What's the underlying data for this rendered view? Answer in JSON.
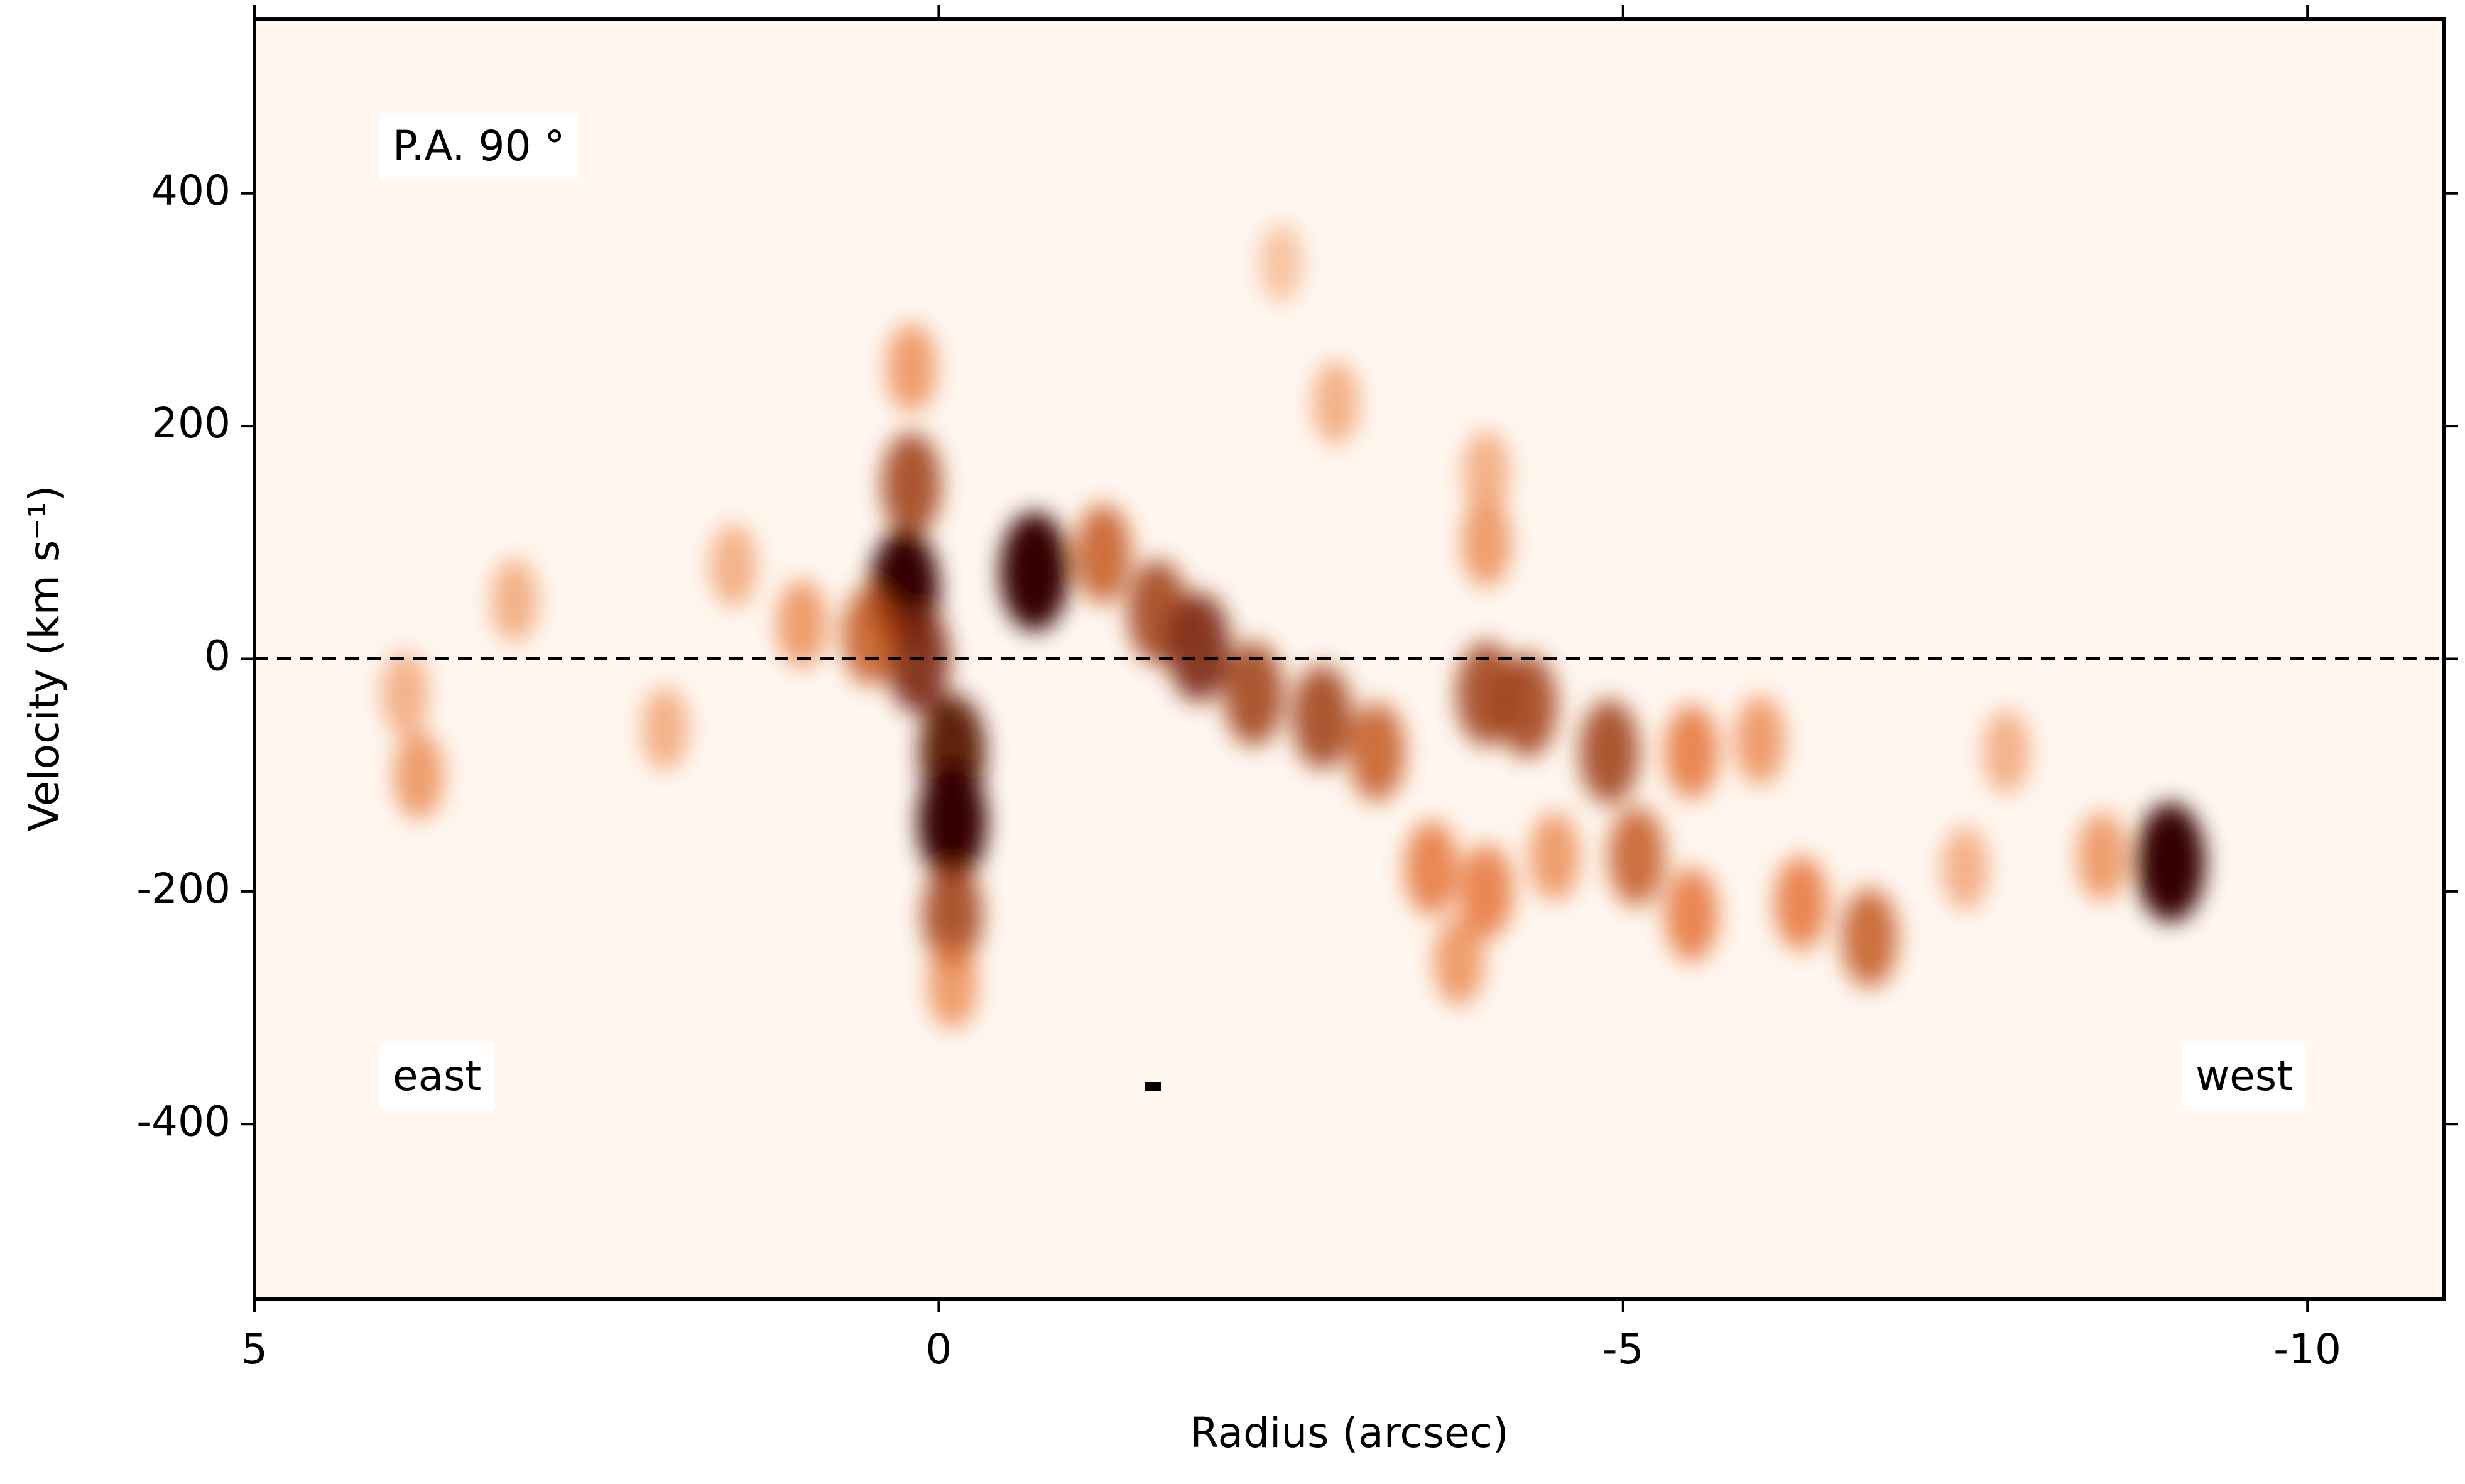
{
  "chart_data": {
    "type": "pv-diagram",
    "xlabel": "Radius (arcsec)",
    "ylabel": "Velocity (km s⁻¹)",
    "xlim": [
      5,
      -11
    ],
    "ylim": [
      -550,
      550
    ],
    "xticks": [
      5,
      0,
      -5,
      -10
    ],
    "yticks": [
      -400,
      -200,
      0,
      200,
      400
    ],
    "hline": 0,
    "annotations": [
      "P.A. 90 °",
      "east",
      "west"
    ],
    "x": [
      0.2,
      0.2,
      0.25,
      0.15,
      -0.1,
      -0.1,
      -0.1,
      -0.1,
      -0.7,
      -1.2,
      -1.6,
      -1.9,
      -2.3,
      -2.8,
      -3.2,
      -4.0,
      -4.3,
      -4.9,
      -5.5,
      -6.0,
      -3.6,
      -4.0,
      -4.5,
      -5.1,
      -5.5,
      -6.3,
      -6.8,
      -7.5,
      -8.5,
      -9.0,
      -3.8,
      -4.0,
      -4.0,
      -2.9,
      1.0,
      1.5,
      2.0,
      3.1,
      3.8,
      3.9,
      -7.8,
      0.5,
      -2.5
    ],
    "y": [
      250,
      150,
      60,
      0,
      -80,
      -140,
      -220,
      -280,
      75,
      90,
      40,
      10,
      -30,
      -50,
      -80,
      -30,
      -40,
      -80,
      -80,
      -70,
      -180,
      -200,
      -170,
      -170,
      -220,
      -210,
      -240,
      -180,
      -170,
      -175,
      -260,
      100,
      160,
      220,
      30,
      80,
      -60,
      50,
      -100,
      -30,
      -80,
      20,
      340
    ],
    "intensity": [
      0.4,
      0.7,
      1.0,
      0.8,
      0.9,
      1.0,
      0.7,
      0.4,
      1.0,
      0.6,
      0.7,
      0.8,
      0.7,
      0.7,
      0.6,
      0.7,
      0.7,
      0.7,
      0.5,
      0.4,
      0.5,
      0.5,
      0.4,
      0.6,
      0.5,
      0.5,
      0.6,
      0.3,
      0.4,
      1.0,
      0.4,
      0.4,
      0.3,
      0.3,
      0.4,
      0.3,
      0.3,
      0.3,
      0.4,
      0.3,
      0.3,
      0.6,
      0.2
    ]
  }
}
